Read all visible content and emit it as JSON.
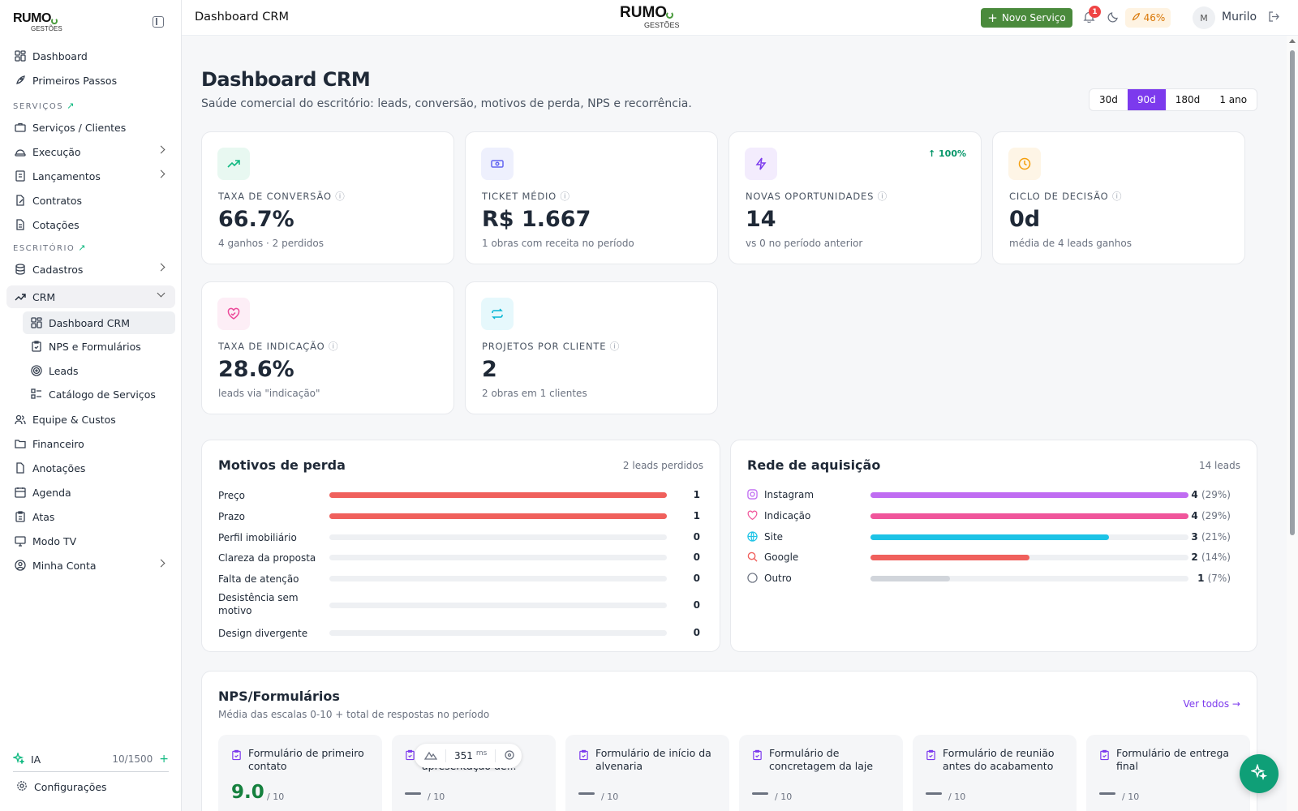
{
  "brand": {
    "word": "RUMO",
    "sub": "GESTÕES"
  },
  "sidebar": {
    "items": [
      {
        "label": "Dashboard"
      },
      {
        "label": "Primeiros Passos"
      },
      {
        "label": "Serviços / Clientes"
      },
      {
        "label": "Execução"
      },
      {
        "label": "Lançamentos"
      },
      {
        "label": "Contratos"
      },
      {
        "label": "Cotações"
      },
      {
        "label": "Cadastros"
      },
      {
        "label": "CRM"
      },
      {
        "label": "Equipe & Custos"
      },
      {
        "label": "Financeiro"
      },
      {
        "label": "Anotações"
      },
      {
        "label": "Agenda"
      },
      {
        "label": "Atas"
      },
      {
        "label": "Modo TV"
      },
      {
        "label": "Minha Conta"
      }
    ],
    "sections": {
      "services": "SERVIÇOS",
      "office": "ESCRITÓRIO"
    },
    "crm_sub": [
      {
        "label": "Dashboard CRM"
      },
      {
        "label": "NPS e Formulários"
      },
      {
        "label": "Leads"
      },
      {
        "label": "Catálogo de Serviços"
      }
    ],
    "ia": {
      "label": "IA",
      "count": "10/1500",
      "add": "+"
    },
    "settings": "Configurações"
  },
  "topbar": {
    "title": "Dashboard CRM",
    "new_service": "Novo Serviço",
    "notifications": "1",
    "progress": "46%",
    "avatar": "M",
    "user": "Murilo"
  },
  "page": {
    "title": "Dashboard CRM",
    "subtitle": "Saúde comercial do escritório: leads, conversão, motivos de perda, NPS e recorrência.",
    "periods": [
      "30d",
      "90d",
      "180d",
      "1 ano"
    ],
    "active_period": "90d"
  },
  "kpis": [
    {
      "label": "TAXA DE CONVERSÃO",
      "value": "66.7%",
      "note": "4 ganhos · 2 perdidos",
      "icon": "trend-up-icon",
      "color": "#10b981"
    },
    {
      "label": "TICKET MÉDIO",
      "value": "R$ 1.667",
      "note": "1 obras com receita no período",
      "icon": "banknote-icon",
      "color": "#6366f1"
    },
    {
      "label": "NOVAS OPORTUNIDADES",
      "value": "14",
      "note": "vs 0 no período anterior",
      "trend": "100%",
      "icon": "zap-icon",
      "color": "#7c3aed"
    },
    {
      "label": "CICLO DE DECISÃO",
      "value": "0d",
      "note": "média de 4 leads ganhos",
      "icon": "clock-icon",
      "color": "#f59e0b"
    },
    {
      "label": "TAXA DE INDICAÇÃO",
      "value": "28.6%",
      "note": "leads via \"indicação\"",
      "icon": "heart-handshake-icon",
      "color": "#ec4899"
    },
    {
      "label": "PROJETOS POR CLIENTE",
      "value": "2",
      "note": "2 obras em 1 clientes",
      "icon": "repeat-icon",
      "color": "#06b6d4"
    }
  ],
  "loss": {
    "title": "Motivos de perda",
    "meta": "2 leads perdidos",
    "rows": [
      {
        "label": "Preço",
        "value": 1,
        "fill": 1.0
      },
      {
        "label": "Prazo",
        "value": 1,
        "fill": 1.0
      },
      {
        "label": "Perfil imobiliário",
        "value": 0,
        "fill": 0
      },
      {
        "label": "Clareza da proposta",
        "value": 0,
        "fill": 0
      },
      {
        "label": "Falta de atenção",
        "value": 0,
        "fill": 0
      },
      {
        "label": "Desistência sem motivo",
        "value": 0,
        "fill": 0
      },
      {
        "label": "Design divergente",
        "value": 0,
        "fill": 0
      }
    ],
    "bar_color": "#f0605c"
  },
  "acq": {
    "title": "Rede de aquisição",
    "meta": "14 leads",
    "rows": [
      {
        "label": "Instagram",
        "count": "4",
        "pct": "(29%)",
        "fill": 1.0,
        "color": "#c06cf2",
        "icon": "instagram-icon"
      },
      {
        "label": "Indicação",
        "count": "4",
        "pct": "(29%)",
        "fill": 1.0,
        "color": "#f0559b",
        "icon": "heart-handshake-icon"
      },
      {
        "label": "Site",
        "count": "3",
        "pct": "(21%)",
        "fill": 0.75,
        "color": "#1dc3e6",
        "icon": "globe-icon"
      },
      {
        "label": "Google",
        "count": "2",
        "pct": "(14%)",
        "fill": 0.5,
        "color": "#f0605c",
        "icon": "search-icon"
      },
      {
        "label": "Outro",
        "count": "1",
        "pct": "(7%)",
        "fill": 0.25,
        "color": "#d1d5db",
        "icon": "circle-icon"
      }
    ]
  },
  "nps": {
    "title": "NPS/Formulários",
    "subtitle": "Média das escalas 0-10 + total de respostas no período",
    "link": "Ver todos →",
    "forms": [
      {
        "title": "Formulário de primeiro contato",
        "score": "9.0",
        "scale": "/ 10"
      },
      {
        "title": "Formulário de apresentação de...",
        "score": "",
        "scale": "/ 10"
      },
      {
        "title": "Formulário de início da alvenaria",
        "score": "",
        "scale": "/ 10"
      },
      {
        "title": "Formulário de concretagem da laje",
        "score": "",
        "scale": "/ 10"
      },
      {
        "title": "Formulário de reunião antes do acabamento",
        "score": "",
        "scale": "/ 10"
      },
      {
        "title": "Formulário de entrega final",
        "score": "",
        "scale": "/ 10"
      }
    ]
  },
  "perf": {
    "value": "351",
    "unit": "ms"
  }
}
